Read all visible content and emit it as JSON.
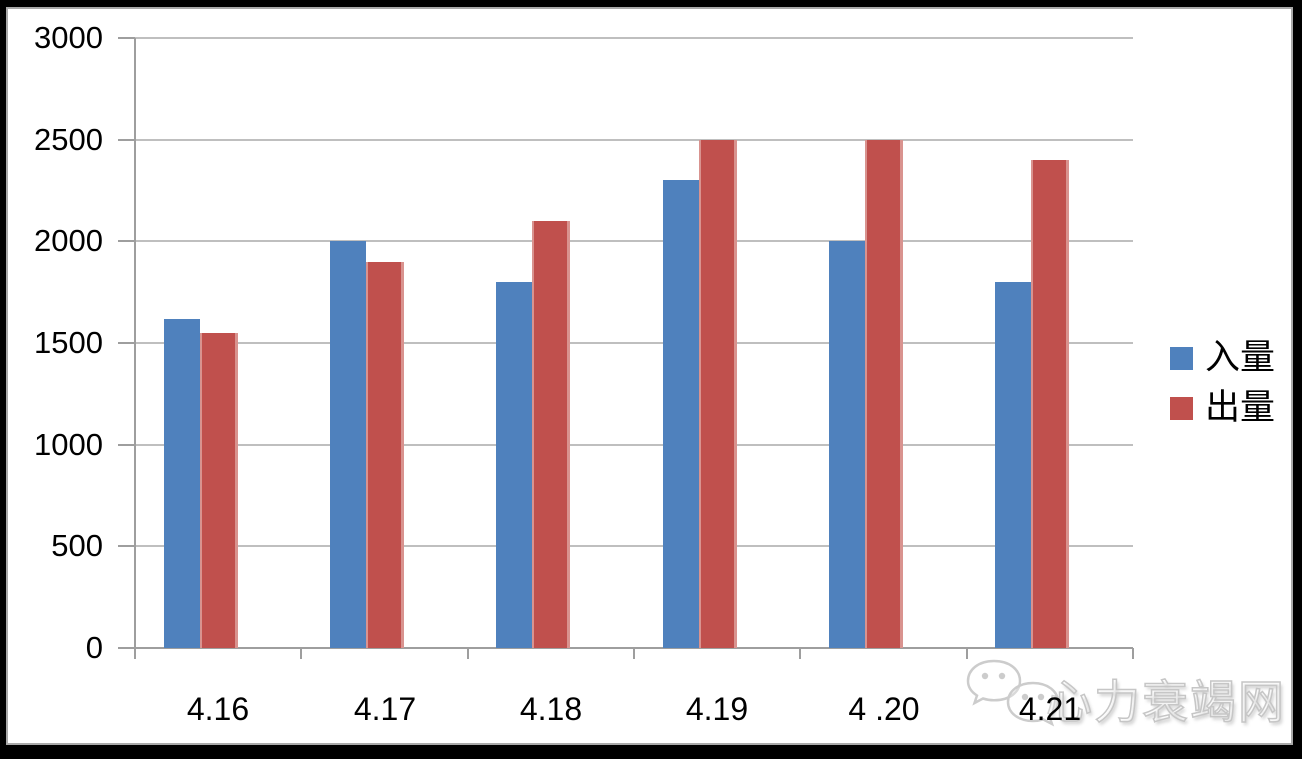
{
  "chart_data": {
    "type": "bar",
    "title": "",
    "xlabel": "",
    "ylabel": "",
    "categories": [
      "4.16",
      "4.17",
      "4.18",
      "4.19",
      "4 .20",
      "4.21"
    ],
    "series": [
      {
        "name": "入量",
        "color": "#4F81BD",
        "edge_color": "",
        "values": [
          1620,
          2000,
          1800,
          2300,
          2000,
          1800
        ]
      },
      {
        "name": "出量",
        "color": "#C0504D",
        "edge_color": "#D9938F",
        "values": [
          1550,
          1900,
          2100,
          2500,
          2500,
          2400
        ]
      }
    ],
    "ylim": [
      0,
      3000
    ],
    "ytick_step": 500,
    "ytick_labels": [
      "0",
      "500",
      "1000",
      "1500",
      "2000",
      "2500",
      "3000"
    ],
    "grid": true,
    "legend_position": "right",
    "gridline_color": "#BFBFBF",
    "axis_color": "#9E9E9E",
    "background_color": "#FFFFFF",
    "frame_color": "#000000"
  },
  "watermark": {
    "text": "心力衰竭网",
    "logo": "wechat-logo"
  }
}
